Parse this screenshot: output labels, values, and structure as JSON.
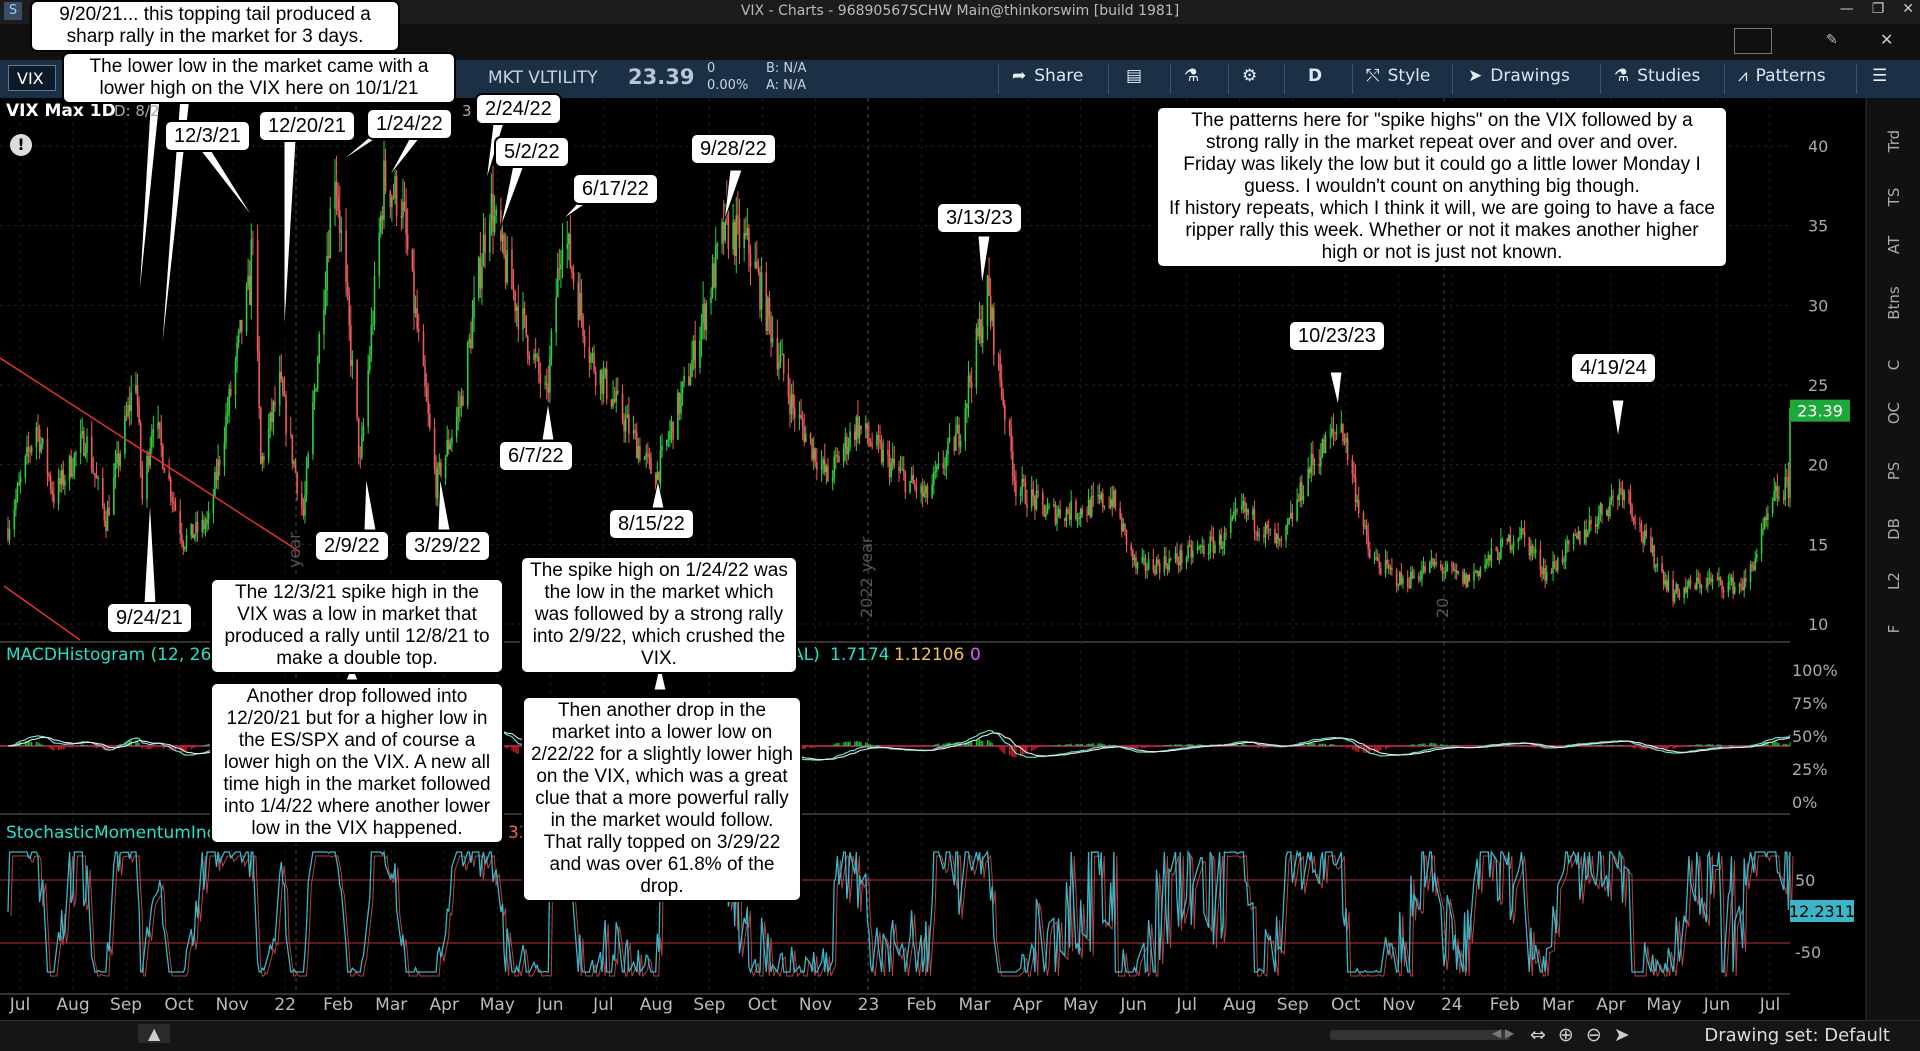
{
  "window": {
    "title": "VIX - Charts - 96890567SCHW Main@thinkorswim [build 1981]"
  },
  "toolbar": {
    "symbol": "VIX",
    "desc": "MKT VLTILITY",
    "last": "23.39",
    "change": "0",
    "change_pct": "0.00%",
    "bid": "B: N/A",
    "ask": "A: N/A",
    "share": "Share",
    "aggregation": "D",
    "style": "Style",
    "drawings": "Drawings",
    "studies": "Studies",
    "patterns": "Patterns"
  },
  "chart_header": {
    "title": "VIX Max 1D",
    "d": "D: 8/2",
    "three": "3"
  },
  "right_tabs": [
    "Trd",
    "TS",
    "AT",
    "Btns",
    "C",
    "OC",
    "PS",
    "DB",
    "L2",
    "F"
  ],
  "chart_data": {
    "type": "candlestick",
    "price_axis": {
      "ticks": [
        40,
        35,
        30,
        25,
        20,
        15,
        10
      ],
      "ylim": [
        10,
        40
      ]
    },
    "last_price_label": "23.39",
    "x_labels": [
      "Jul",
      "Aug",
      "Sep",
      "Oct",
      "Nov",
      "22",
      "Feb",
      "Mar",
      "Apr",
      "May",
      "Jun",
      "Jul",
      "Aug",
      "Sep",
      "Oct",
      "Nov",
      "23",
      "Feb",
      "Mar",
      "Apr",
      "May",
      "Jun",
      "Jul",
      "Aug",
      "Sep",
      "Oct",
      "Nov",
      "24",
      "Feb",
      "Mar",
      "Apr",
      "May",
      "Jun",
      "Jul"
    ],
    "year_markers": [
      "year",
      "2022 year",
      "20"
    ],
    "closes": [
      {
        "date": "2021-07-01",
        "value": 16.0
      },
      {
        "date": "2021-07-19",
        "value": 22.5
      },
      {
        "date": "2021-07-30",
        "value": 18.0
      },
      {
        "date": "2021-08-19",
        "value": 21.7
      },
      {
        "date": "2021-09-01",
        "value": 16.5
      },
      {
        "date": "2021-09-20",
        "value": 25.7
      },
      {
        "date": "2021-09-24",
        "value": 17.8
      },
      {
        "date": "2021-10-01",
        "value": 23.1
      },
      {
        "date": "2021-10-20",
        "value": 15.2
      },
      {
        "date": "2021-11-05",
        "value": 16.4
      },
      {
        "date": "2021-11-26",
        "value": 28.6
      },
      {
        "date": "2021-12-01",
        "value": 31.1
      },
      {
        "date": "2021-12-03",
        "value": 35.3
      },
      {
        "date": "2021-12-08",
        "value": 19.9
      },
      {
        "date": "2021-12-20",
        "value": 25.0
      },
      {
        "date": "2022-01-04",
        "value": 16.8
      },
      {
        "date": "2022-01-24",
        "value": 38.9
      },
      {
        "date": "2022-02-09",
        "value": 19.9
      },
      {
        "date": "2022-02-24",
        "value": 37.8
      },
      {
        "date": "2022-03-07",
        "value": 36.5
      },
      {
        "date": "2022-03-29",
        "value": 18.7
      },
      {
        "date": "2022-04-14",
        "value": 24.0
      },
      {
        "date": "2022-05-02",
        "value": 36.6
      },
      {
        "date": "2022-05-10",
        "value": 33.0
      },
      {
        "date": "2022-06-07",
        "value": 24.0
      },
      {
        "date": "2022-06-17",
        "value": 35.1
      },
      {
        "date": "2022-07-05",
        "value": 26.7
      },
      {
        "date": "2022-08-15",
        "value": 19.1
      },
      {
        "date": "2022-09-06",
        "value": 26.0
      },
      {
        "date": "2022-09-28",
        "value": 34.9
      },
      {
        "date": "2022-10-13",
        "value": 33.6
      },
      {
        "date": "2022-11-10",
        "value": 23.5
      },
      {
        "date": "2022-12-02",
        "value": 19.1
      },
      {
        "date": "2022-12-20",
        "value": 22.5
      },
      {
        "date": "2023-01-10",
        "value": 20.0
      },
      {
        "date": "2023-02-02",
        "value": 17.9
      },
      {
        "date": "2023-02-23",
        "value": 22.0
      },
      {
        "date": "2023-03-13",
        "value": 30.8
      },
      {
        "date": "2023-03-31",
        "value": 18.7
      },
      {
        "date": "2023-04-20",
        "value": 17.0
      },
      {
        "date": "2023-05-10",
        "value": 17.1
      },
      {
        "date": "2023-05-31",
        "value": 17.9
      },
      {
        "date": "2023-06-15",
        "value": 13.5
      },
      {
        "date": "2023-07-10",
        "value": 14.0
      },
      {
        "date": "2023-08-10",
        "value": 15.3
      },
      {
        "date": "2023-08-21",
        "value": 17.2
      },
      {
        "date": "2023-09-15",
        "value": 14.8
      },
      {
        "date": "2023-10-03",
        "value": 19.8
      },
      {
        "date": "2023-10-23",
        "value": 22.6
      },
      {
        "date": "2023-11-10",
        "value": 14.2
      },
      {
        "date": "2023-12-01",
        "value": 12.6
      },
      {
        "date": "2023-12-20",
        "value": 13.7
      },
      {
        "date": "2024-01-10",
        "value": 12.7
      },
      {
        "date": "2024-02-13",
        "value": 15.8
      },
      {
        "date": "2024-03-01",
        "value": 13.1
      },
      {
        "date": "2024-04-19",
        "value": 18.7
      },
      {
        "date": "2024-05-01",
        "value": 15.4
      },
      {
        "date": "2024-05-20",
        "value": 11.9
      },
      {
        "date": "2024-06-10",
        "value": 12.7
      },
      {
        "date": "2024-06-28",
        "value": 12.4
      },
      {
        "date": "2024-07-05",
        "value": 12.5
      },
      {
        "date": "2024-07-24",
        "value": 18.0
      },
      {
        "date": "2024-08-01",
        "value": 18.6
      },
      {
        "date": "2024-08-02",
        "value": 23.39
      }
    ],
    "macd": {
      "label": "MACDHistogram (12, 26,",
      "label_tail": "AL)",
      "values_shown": [
        "1.7174",
        "1.12106",
        "0"
      ],
      "axis": [
        "100%",
        "75%",
        "50%",
        "25%",
        "0%"
      ]
    },
    "stoch": {
      "label": "StochasticMomentumInd",
      "label_tail": "33",
      "axis": [
        "50",
        "-50"
      ],
      "last_label": "12.2311"
    }
  },
  "annotations": {
    "top_left_1": "9/20/21... this topping tail produced a sharp rally in the market for 3 days.",
    "top_left_2": "The lower low in the market came with a lower high on the VIX here on 10/1/21",
    "d_12_3_21": "12/3/21",
    "d_12_20_21": "12/20/21",
    "d_1_24_22": "1/24/22",
    "d_2_24_22": "2/24/22",
    "d_5_2_22": "5/2/22",
    "d_6_17_22": "6/17/22",
    "d_9_28_22": "9/28/22",
    "d_3_13_23": "3/13/23",
    "d_10_23_23": "10/23/23",
    "d_4_19_24": "4/19/24",
    "d_6_7_22": "6/7/22",
    "d_8_15_22": "8/15/22",
    "d_2_9_22": "2/9/22",
    "d_3_29_22": "3/29/22",
    "d_9_24_21": "9/24/21",
    "patterns_note": "The patterns here for \"spike highs\" on the VIX followed by a strong rally in the market repeat over and over and over.\nFriday was likely the low but it could go a little lower Monday I guess.  I wouldn't count on anything big though.\nIf history repeats, which I think it will, we are going to have a face ripper rally this week.  Whether or not it makes another higher high or not is just not known.",
    "note_12_3": "The 12/3/21 spike high in the VIX was a low in market that produced a rally until 12/8/21 to make a double top.",
    "note_12_20": "Another drop followed into 12/20/21 but for a higher low in the ES/SPX and of course a lower high on the VIX.  A new all time high in the market followed into 1/4/22 where another lower low in the VIX happened.",
    "note_1_24": "The spike high on 1/24/22 was the low in the market which was followed by a strong rally into 2/9/22, which crushed the VIX.",
    "note_2_22": "Then another drop in the market into a lower low on 2/22/22 for a slightly lower high on the VIX, which was a great clue that a more powerful rally in the market would follow.  That rally topped on 3/29/22 and was over 61.8% of the drop."
  },
  "status": {
    "drawing_set": "Drawing set: Default"
  }
}
